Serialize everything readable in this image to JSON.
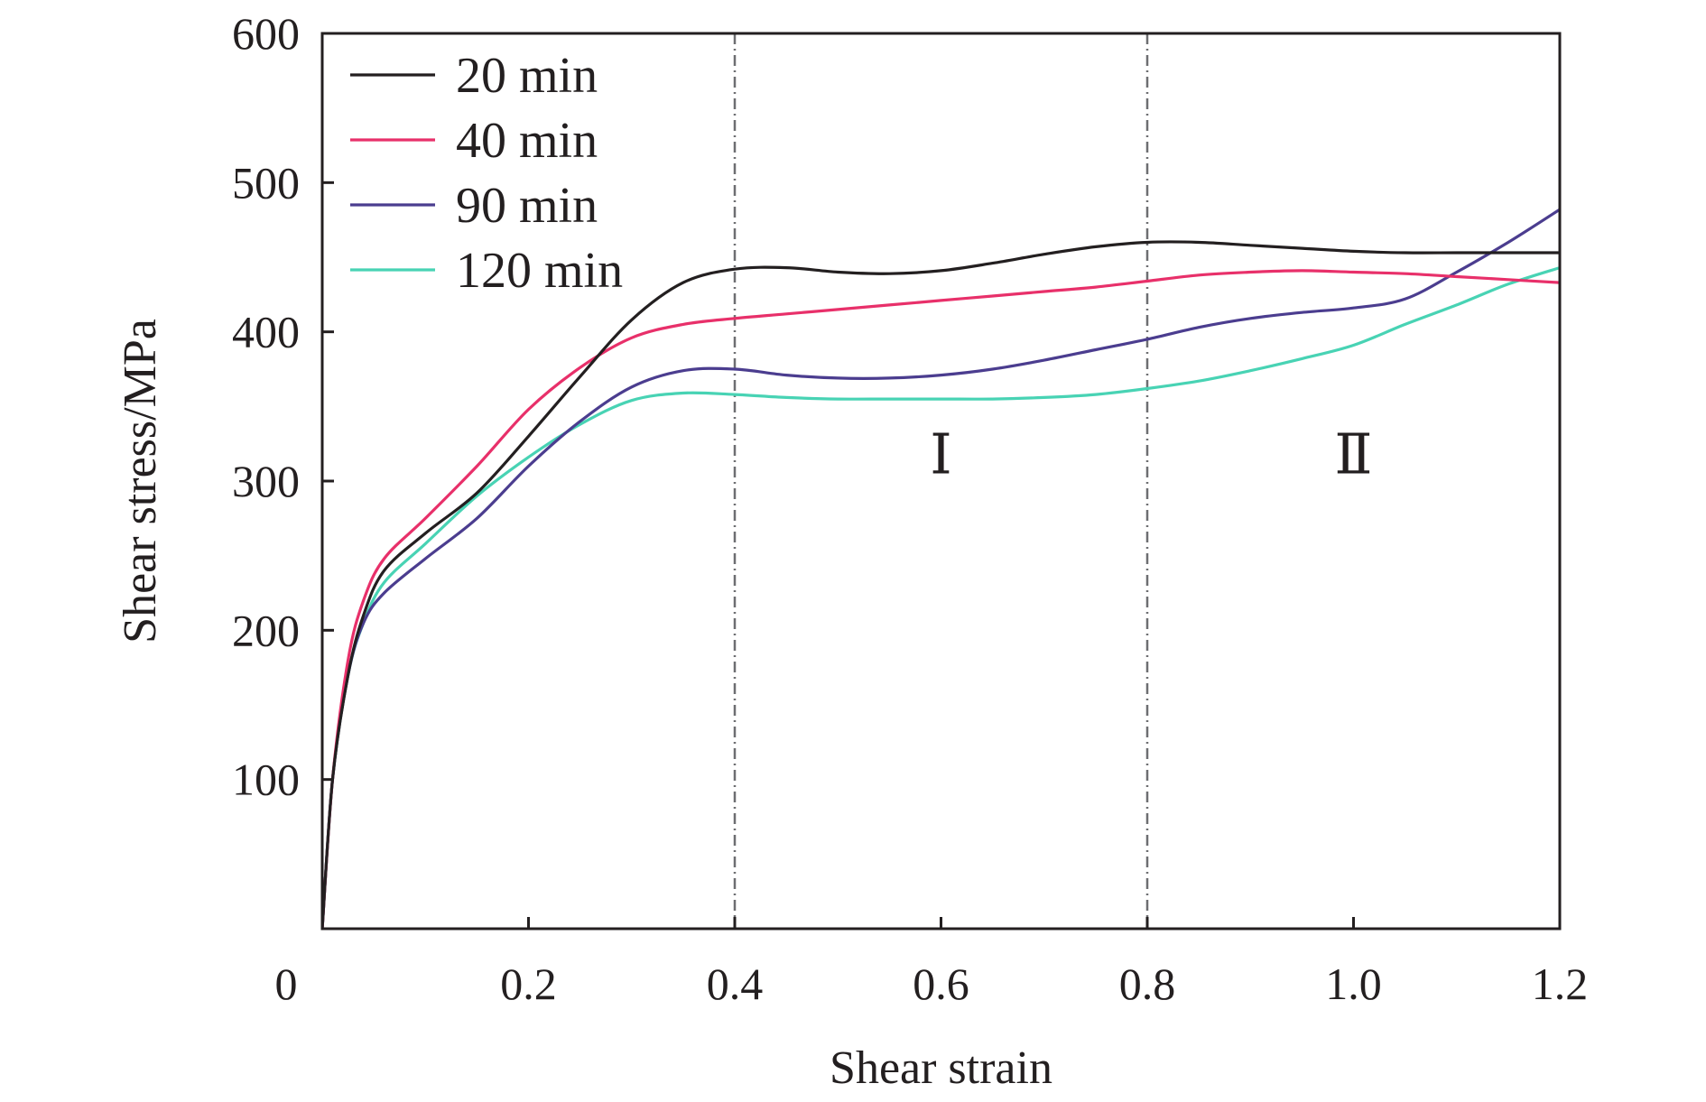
{
  "chart_data": {
    "type": "line",
    "title": "",
    "xlabel": "Shear strain",
    "ylabel": "Shear stress/MPa",
    "xlim": [
      0,
      1.2
    ],
    "ylim": [
      0,
      600
    ],
    "xticks": [
      0,
      0.2,
      0.4,
      0.6,
      0.8,
      1.0,
      1.2
    ],
    "xtick_labels": [
      "0",
      "0.2",
      "0.4",
      "0.6",
      "0.8",
      "1.0",
      "1.2"
    ],
    "yticks": [
      100,
      200,
      300,
      400,
      500,
      600
    ],
    "ytick_labels": [
      "100",
      "200",
      "300",
      "400",
      "500",
      "600"
    ],
    "grid": false,
    "legend_position": "top-left",
    "region_dividers": [
      0.4,
      0.8
    ],
    "region_labels": [
      {
        "text": "Ⅰ",
        "x": 0.6,
        "y": 305
      },
      {
        "text": "Ⅱ",
        "x": 1.0,
        "y": 305
      }
    ],
    "series": [
      {
        "name": "20 min",
        "color": "#231f20",
        "points": [
          [
            0,
            0
          ],
          [
            0.01,
            100
          ],
          [
            0.025,
            170
          ],
          [
            0.04,
            210
          ],
          [
            0.06,
            240
          ],
          [
            0.1,
            265
          ],
          [
            0.15,
            292
          ],
          [
            0.2,
            330
          ],
          [
            0.25,
            370
          ],
          [
            0.3,
            408
          ],
          [
            0.35,
            433
          ],
          [
            0.4,
            442
          ],
          [
            0.45,
            443
          ],
          [
            0.5,
            440
          ],
          [
            0.55,
            439
          ],
          [
            0.6,
            441
          ],
          [
            0.65,
            446
          ],
          [
            0.7,
            452
          ],
          [
            0.75,
            457
          ],
          [
            0.8,
            460
          ],
          [
            0.85,
            460
          ],
          [
            0.9,
            458
          ],
          [
            0.95,
            456
          ],
          [
            1.0,
            454
          ],
          [
            1.05,
            453
          ],
          [
            1.1,
            453
          ],
          [
            1.15,
            453
          ],
          [
            1.2,
            453
          ]
        ]
      },
      {
        "name": "40 min",
        "color": "#e8306a",
        "points": [
          [
            0,
            0
          ],
          [
            0.01,
            100
          ],
          [
            0.025,
            180
          ],
          [
            0.04,
            220
          ],
          [
            0.06,
            248
          ],
          [
            0.1,
            275
          ],
          [
            0.15,
            310
          ],
          [
            0.2,
            348
          ],
          [
            0.25,
            376
          ],
          [
            0.3,
            396
          ],
          [
            0.35,
            405
          ],
          [
            0.4,
            409
          ],
          [
            0.45,
            412
          ],
          [
            0.5,
            415
          ],
          [
            0.55,
            418
          ],
          [
            0.6,
            421
          ],
          [
            0.65,
            424
          ],
          [
            0.7,
            427
          ],
          [
            0.75,
            430
          ],
          [
            0.8,
            434
          ],
          [
            0.85,
            438
          ],
          [
            0.9,
            440
          ],
          [
            0.95,
            441
          ],
          [
            1.0,
            440
          ],
          [
            1.05,
            439
          ],
          [
            1.1,
            437
          ],
          [
            1.15,
            435
          ],
          [
            1.2,
            433
          ]
        ]
      },
      {
        "name": "90 min",
        "color": "#4b3d8f",
        "points": [
          [
            0,
            0
          ],
          [
            0.01,
            100
          ],
          [
            0.025,
            170
          ],
          [
            0.04,
            205
          ],
          [
            0.06,
            225
          ],
          [
            0.1,
            248
          ],
          [
            0.15,
            275
          ],
          [
            0.2,
            310
          ],
          [
            0.25,
            340
          ],
          [
            0.3,
            363
          ],
          [
            0.35,
            374
          ],
          [
            0.4,
            375
          ],
          [
            0.45,
            371
          ],
          [
            0.5,
            369
          ],
          [
            0.55,
            369
          ],
          [
            0.6,
            371
          ],
          [
            0.65,
            375
          ],
          [
            0.7,
            381
          ],
          [
            0.75,
            388
          ],
          [
            0.8,
            395
          ],
          [
            0.85,
            403
          ],
          [
            0.9,
            409
          ],
          [
            0.95,
            413
          ],
          [
            1.0,
            416
          ],
          [
            1.05,
            422
          ],
          [
            1.1,
            440
          ],
          [
            1.15,
            460
          ],
          [
            1.2,
            482
          ]
        ]
      },
      {
        "name": "120 min",
        "color": "#48d3b4",
        "points": [
          [
            0,
            0
          ],
          [
            0.01,
            100
          ],
          [
            0.025,
            170
          ],
          [
            0.04,
            205
          ],
          [
            0.06,
            232
          ],
          [
            0.1,
            258
          ],
          [
            0.15,
            290
          ],
          [
            0.2,
            316
          ],
          [
            0.25,
            338
          ],
          [
            0.3,
            354
          ],
          [
            0.35,
            359
          ],
          [
            0.4,
            358
          ],
          [
            0.45,
            356
          ],
          [
            0.5,
            355
          ],
          [
            0.55,
            355
          ],
          [
            0.6,
            355
          ],
          [
            0.65,
            355
          ],
          [
            0.7,
            356
          ],
          [
            0.75,
            358
          ],
          [
            0.8,
            362
          ],
          [
            0.85,
            367
          ],
          [
            0.9,
            374
          ],
          [
            0.95,
            382
          ],
          [
            1.0,
            391
          ],
          [
            1.05,
            405
          ],
          [
            1.1,
            418
          ],
          [
            1.15,
            432
          ],
          [
            1.2,
            443
          ]
        ]
      }
    ]
  }
}
